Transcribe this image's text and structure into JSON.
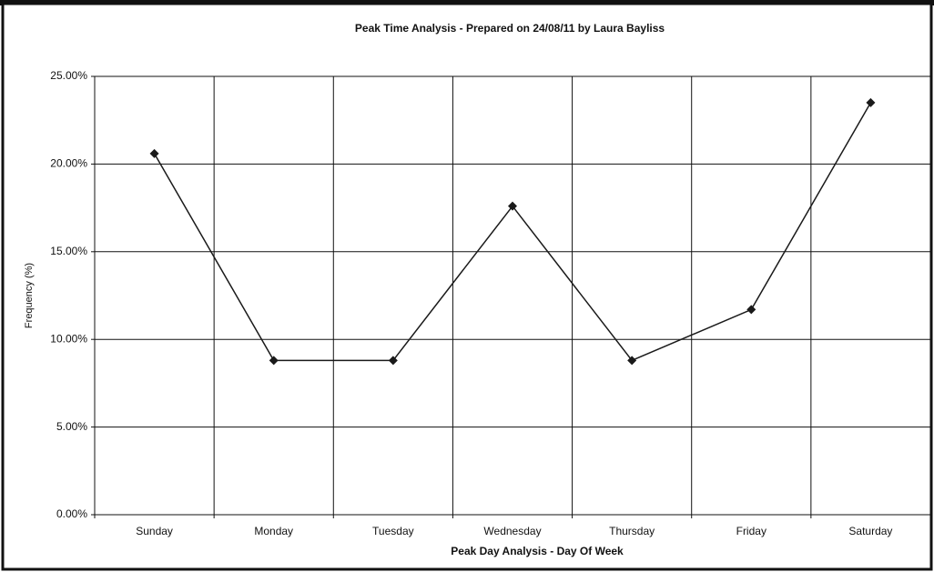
{
  "chart_data": {
    "type": "line",
    "title": "Peak Time Analysis - Prepared on 24/08/11 by Laura Bayliss",
    "x_label": "Peak Day Analysis - Day Of Week",
    "y_label": "Frequency (%)",
    "categories": [
      "Sunday",
      "Monday",
      "Tuesday",
      "Wednesday",
      "Thursday",
      "Friday",
      "Saturday"
    ],
    "series": [
      {
        "color": "#1a1a1a",
        "values": [
          20.6,
          8.8,
          8.8,
          17.6,
          8.8,
          11.7,
          23.5
        ]
      }
    ],
    "ylim": [
      0,
      25
    ],
    "yticks": [
      {
        "value": 0,
        "label": "0.00%"
      },
      {
        "value": 5,
        "label": "5.00%"
      },
      {
        "value": 10,
        "label": "10.00%"
      },
      {
        "value": 15,
        "label": "15.00%"
      },
      {
        "value": 20,
        "label": "20.00%"
      },
      {
        "value": 25,
        "label": "25.00%"
      }
    ],
    "grid": true
  }
}
